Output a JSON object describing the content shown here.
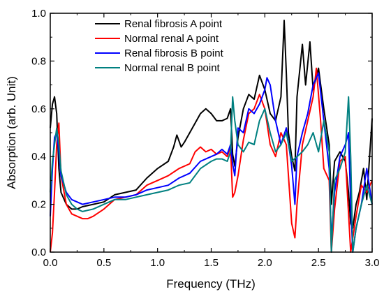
{
  "chart_data": {
    "type": "line",
    "xlabel": "Frequency (THz)",
    "ylabel": "Absorption (arb. Unit)",
    "xlim": [
      0.0,
      3.0
    ],
    "ylim": [
      0.0,
      1.0
    ],
    "xticks": [
      "0.0",
      "0.5",
      "1.0",
      "1.5",
      "2.0",
      "2.5",
      "3.0"
    ],
    "yticks": [
      "0.0",
      "0.2",
      "0.4",
      "0.6",
      "0.8",
      "1.0"
    ],
    "legend_position": "top-center",
    "series": [
      {
        "name": "Renal fibrosis A point",
        "color": "#000000",
        "points": [
          [
            0.0,
            0.52
          ],
          [
            0.02,
            0.62
          ],
          [
            0.04,
            0.65
          ],
          [
            0.06,
            0.58
          ],
          [
            0.08,
            0.35
          ],
          [
            0.1,
            0.25
          ],
          [
            0.15,
            0.2
          ],
          [
            0.2,
            0.18
          ],
          [
            0.25,
            0.18
          ],
          [
            0.3,
            0.19
          ],
          [
            0.4,
            0.2
          ],
          [
            0.5,
            0.21
          ],
          [
            0.6,
            0.24
          ],
          [
            0.7,
            0.25
          ],
          [
            0.8,
            0.26
          ],
          [
            0.9,
            0.31
          ],
          [
            1.0,
            0.35
          ],
          [
            1.1,
            0.38
          ],
          [
            1.15,
            0.44
          ],
          [
            1.18,
            0.49
          ],
          [
            1.22,
            0.44
          ],
          [
            1.25,
            0.46
          ],
          [
            1.3,
            0.5
          ],
          [
            1.35,
            0.54
          ],
          [
            1.4,
            0.58
          ],
          [
            1.45,
            0.6
          ],
          [
            1.5,
            0.58
          ],
          [
            1.55,
            0.55
          ],
          [
            1.6,
            0.55
          ],
          [
            1.65,
            0.56
          ],
          [
            1.68,
            0.6
          ],
          [
            1.7,
            0.41
          ],
          [
            1.72,
            0.36
          ],
          [
            1.75,
            0.48
          ],
          [
            1.8,
            0.6
          ],
          [
            1.85,
            0.66
          ],
          [
            1.9,
            0.64
          ],
          [
            1.95,
            0.74
          ],
          [
            2.0,
            0.68
          ],
          [
            2.05,
            0.58
          ],
          [
            2.1,
            0.55
          ],
          [
            2.15,
            0.65
          ],
          [
            2.18,
            0.97
          ],
          [
            2.2,
            0.75
          ],
          [
            2.22,
            0.5
          ],
          [
            2.25,
            0.4
          ],
          [
            2.28,
            0.34
          ],
          [
            2.3,
            0.65
          ],
          [
            2.35,
            0.87
          ],
          [
            2.38,
            0.7
          ],
          [
            2.42,
            0.88
          ],
          [
            2.45,
            0.68
          ],
          [
            2.5,
            0.77
          ],
          [
            2.55,
            0.6
          ],
          [
            2.6,
            0.45
          ],
          [
            2.62,
            0.2
          ],
          [
            2.65,
            0.38
          ],
          [
            2.7,
            0.42
          ],
          [
            2.75,
            0.38
          ],
          [
            2.78,
            0.25
          ],
          [
            2.8,
            0.12
          ],
          [
            2.82,
            0.1
          ],
          [
            2.85,
            0.2
          ],
          [
            2.88,
            0.25
          ],
          [
            2.92,
            0.35
          ],
          [
            2.95,
            0.22
          ],
          [
            3.0,
            0.56
          ]
        ]
      },
      {
        "name": "Normal renal A point",
        "color": "#ff0000",
        "points": [
          [
            0.0,
            0.0
          ],
          [
            0.02,
            0.08
          ],
          [
            0.04,
            0.25
          ],
          [
            0.06,
            0.45
          ],
          [
            0.08,
            0.54
          ],
          [
            0.1,
            0.32
          ],
          [
            0.15,
            0.2
          ],
          [
            0.2,
            0.16
          ],
          [
            0.25,
            0.15
          ],
          [
            0.3,
            0.14
          ],
          [
            0.35,
            0.14
          ],
          [
            0.4,
            0.15
          ],
          [
            0.5,
            0.18
          ],
          [
            0.6,
            0.22
          ],
          [
            0.7,
            0.23
          ],
          [
            0.8,
            0.24
          ],
          [
            0.9,
            0.28
          ],
          [
            1.0,
            0.3
          ],
          [
            1.1,
            0.32
          ],
          [
            1.2,
            0.35
          ],
          [
            1.3,
            0.37
          ],
          [
            1.35,
            0.42
          ],
          [
            1.4,
            0.44
          ],
          [
            1.45,
            0.42
          ],
          [
            1.5,
            0.43
          ],
          [
            1.55,
            0.41
          ],
          [
            1.6,
            0.42
          ],
          [
            1.65,
            0.4
          ],
          [
            1.68,
            0.44
          ],
          [
            1.7,
            0.23
          ],
          [
            1.72,
            0.25
          ],
          [
            1.75,
            0.32
          ],
          [
            1.8,
            0.47
          ],
          [
            1.85,
            0.58
          ],
          [
            1.9,
            0.6
          ],
          [
            1.95,
            0.66
          ],
          [
            2.0,
            0.6
          ],
          [
            2.05,
            0.45
          ],
          [
            2.1,
            0.4
          ],
          [
            2.15,
            0.5
          ],
          [
            2.2,
            0.45
          ],
          [
            2.25,
            0.12
          ],
          [
            2.28,
            0.06
          ],
          [
            2.3,
            0.2
          ],
          [
            2.35,
            0.45
          ],
          [
            2.4,
            0.55
          ],
          [
            2.45,
            0.65
          ],
          [
            2.48,
            0.77
          ],
          [
            2.52,
            0.55
          ],
          [
            2.55,
            0.35
          ],
          [
            2.6,
            0.3
          ],
          [
            2.62,
            0.0
          ],
          [
            2.65,
            0.18
          ],
          [
            2.7,
            0.38
          ],
          [
            2.75,
            0.4
          ],
          [
            2.8,
            0.0
          ],
          [
            2.85,
            0.15
          ],
          [
            2.9,
            0.28
          ],
          [
            2.95,
            0.25
          ],
          [
            3.0,
            0.3
          ]
        ]
      },
      {
        "name": "Renal fibrosis B point",
        "color": "#0000ff",
        "points": [
          [
            0.0,
            0.15
          ],
          [
            0.02,
            0.35
          ],
          [
            0.04,
            0.48
          ],
          [
            0.06,
            0.5
          ],
          [
            0.08,
            0.42
          ],
          [
            0.1,
            0.32
          ],
          [
            0.15,
            0.25
          ],
          [
            0.2,
            0.22
          ],
          [
            0.25,
            0.21
          ],
          [
            0.3,
            0.2
          ],
          [
            0.4,
            0.21
          ],
          [
            0.5,
            0.22
          ],
          [
            0.6,
            0.23
          ],
          [
            0.7,
            0.23
          ],
          [
            0.8,
            0.24
          ],
          [
            0.9,
            0.26
          ],
          [
            1.0,
            0.27
          ],
          [
            1.1,
            0.28
          ],
          [
            1.2,
            0.31
          ],
          [
            1.3,
            0.33
          ],
          [
            1.4,
            0.38
          ],
          [
            1.5,
            0.4
          ],
          [
            1.55,
            0.41
          ],
          [
            1.6,
            0.43
          ],
          [
            1.65,
            0.41
          ],
          [
            1.68,
            0.45
          ],
          [
            1.7,
            0.37
          ],
          [
            1.72,
            0.32
          ],
          [
            1.75,
            0.52
          ],
          [
            1.8,
            0.5
          ],
          [
            1.85,
            0.6
          ],
          [
            1.9,
            0.58
          ],
          [
            1.95,
            0.62
          ],
          [
            2.0,
            0.68
          ],
          [
            2.02,
            0.73
          ],
          [
            2.05,
            0.7
          ],
          [
            2.1,
            0.55
          ],
          [
            2.15,
            0.45
          ],
          [
            2.2,
            0.52
          ],
          [
            2.25,
            0.36
          ],
          [
            2.28,
            0.2
          ],
          [
            2.3,
            0.4
          ],
          [
            2.35,
            0.5
          ],
          [
            2.4,
            0.58
          ],
          [
            2.45,
            0.7
          ],
          [
            2.5,
            0.75
          ],
          [
            2.55,
            0.55
          ],
          [
            2.6,
            0.35
          ],
          [
            2.62,
            0.05
          ],
          [
            2.65,
            0.25
          ],
          [
            2.7,
            0.4
          ],
          [
            2.75,
            0.45
          ],
          [
            2.78,
            0.5
          ],
          [
            2.8,
            0.2
          ],
          [
            2.82,
            0.0
          ],
          [
            2.85,
            0.1
          ],
          [
            2.9,
            0.2
          ],
          [
            2.95,
            0.35
          ],
          [
            3.0,
            0.2
          ]
        ]
      },
      {
        "name": "Normal renal B point",
        "color": "#008080",
        "points": [
          [
            0.0,
            0.25
          ],
          [
            0.02,
            0.38
          ],
          [
            0.04,
            0.45
          ],
          [
            0.06,
            0.52
          ],
          [
            0.08,
            0.45
          ],
          [
            0.1,
            0.34
          ],
          [
            0.15,
            0.24
          ],
          [
            0.2,
            0.2
          ],
          [
            0.25,
            0.18
          ],
          [
            0.3,
            0.17
          ],
          [
            0.4,
            0.18
          ],
          [
            0.5,
            0.2
          ],
          [
            0.6,
            0.22
          ],
          [
            0.7,
            0.22
          ],
          [
            0.8,
            0.23
          ],
          [
            0.9,
            0.24
          ],
          [
            1.0,
            0.25
          ],
          [
            1.1,
            0.26
          ],
          [
            1.2,
            0.28
          ],
          [
            1.3,
            0.29
          ],
          [
            1.4,
            0.35
          ],
          [
            1.5,
            0.38
          ],
          [
            1.55,
            0.39
          ],
          [
            1.6,
            0.39
          ],
          [
            1.65,
            0.38
          ],
          [
            1.68,
            0.42
          ],
          [
            1.7,
            0.65
          ],
          [
            1.72,
            0.55
          ],
          [
            1.75,
            0.45
          ],
          [
            1.8,
            0.42
          ],
          [
            1.85,
            0.46
          ],
          [
            1.9,
            0.45
          ],
          [
            1.95,
            0.55
          ],
          [
            2.0,
            0.6
          ],
          [
            2.05,
            0.5
          ],
          [
            2.1,
            0.42
          ],
          [
            2.15,
            0.45
          ],
          [
            2.2,
            0.5
          ],
          [
            2.25,
            0.38
          ],
          [
            2.3,
            0.4
          ],
          [
            2.35,
            0.42
          ],
          [
            2.4,
            0.45
          ],
          [
            2.45,
            0.5
          ],
          [
            2.5,
            0.42
          ],
          [
            2.55,
            0.55
          ],
          [
            2.6,
            0.42
          ],
          [
            2.62,
            0.0
          ],
          [
            2.65,
            0.3
          ],
          [
            2.7,
            0.35
          ],
          [
            2.75,
            0.42
          ],
          [
            2.78,
            0.65
          ],
          [
            2.8,
            0.4
          ],
          [
            2.82,
            0.0
          ],
          [
            2.85,
            0.1
          ],
          [
            2.9,
            0.2
          ],
          [
            2.95,
            0.28
          ],
          [
            3.0,
            0.2
          ]
        ]
      }
    ]
  }
}
